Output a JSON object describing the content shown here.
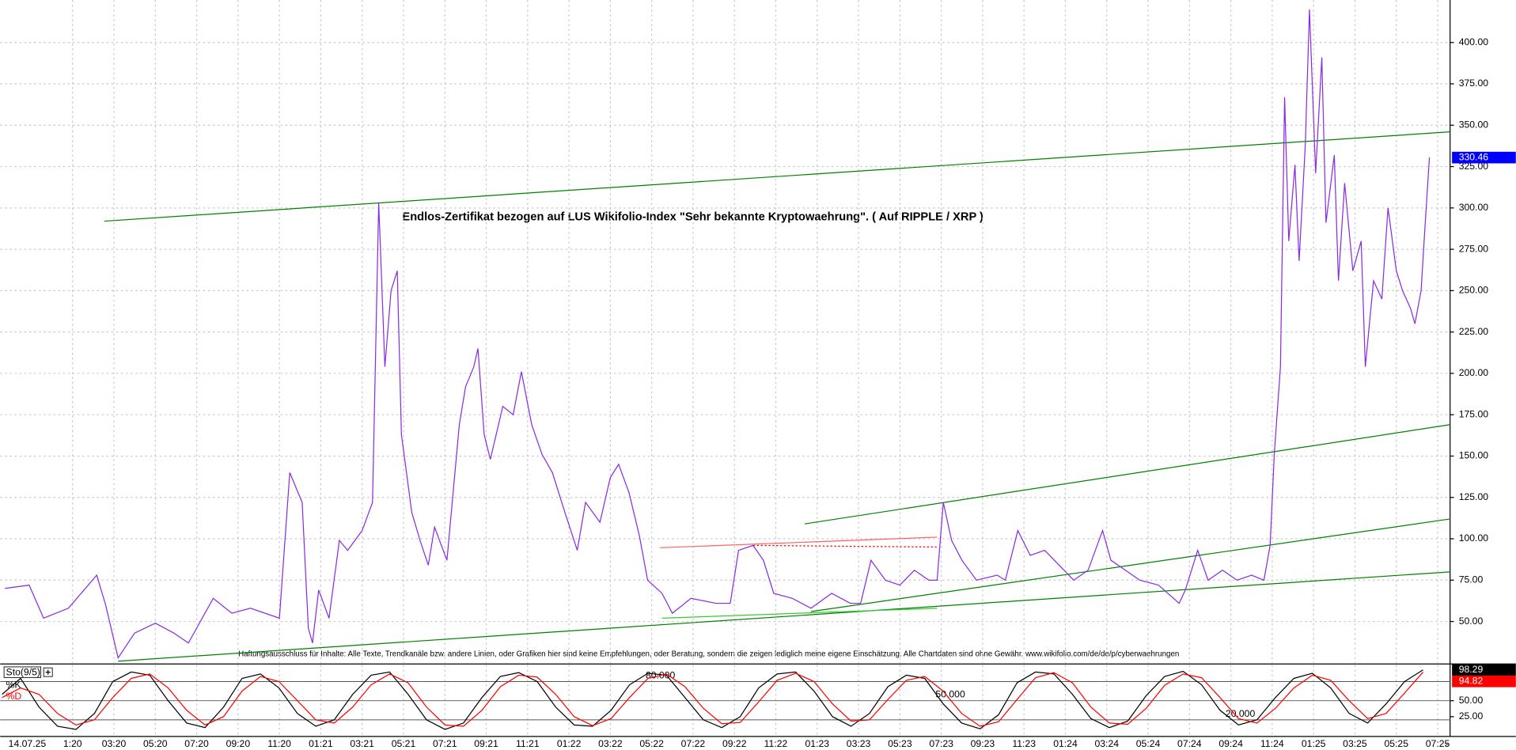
{
  "chart_data": [
    {
      "type": "line",
      "title": "Endlos-Zertifikat bezogen auf LUS Wikifolio-Index \"Sehr bekannte Kryptowaehrung\". ( Auf RIPPLE / XRP )",
      "annotation": "Haftungsausschluss für Inhalte: Alle Texte, Trendkanäle bzw. andere Linien, oder Grafiken hier sind keine Empfehlungen, oder Beratung, sondern die zeigen lediglich meine eigene Einschätzung. Alle Chartdaten sind ohne Gewähr. www.wikifolio.com/de/de/p/cyberwaehrungen",
      "cursor_date": "14.07.25",
      "x": [
        -3.27,
        -2.1,
        -1.4,
        -0.2,
        1.17,
        1.6,
        2.2,
        3.0,
        4.0,
        4.9,
        5.6,
        6.8,
        7.7,
        8.6,
        10.0,
        10.5,
        11.1,
        11.4,
        11.6,
        11.9,
        12.4,
        12.9,
        13.3,
        14.0,
        14.5,
        14.8,
        15.1,
        15.4,
        15.7,
        15.9,
        16.4,
        16.8,
        17.2,
        17.5,
        18.1,
        18.7,
        19.0,
        19.4,
        19.6,
        19.9,
        20.2,
        20.8,
        21.3,
        21.7,
        22.2,
        22.7,
        23.2,
        23.8,
        24.4,
        24.8,
        25.5,
        26.0,
        26.4,
        26.9,
        27.4,
        27.8,
        28.5,
        29.0,
        29.9,
        31.1,
        31.8,
        32.2,
        32.9,
        33.4,
        33.9,
        34.8,
        35.7,
        36.7,
        37.6,
        38.1,
        38.6,
        39.3,
        40.0,
        40.7,
        41.4,
        41.8,
        42.1,
        42.5,
        43.0,
        43.7,
        44.7,
        45.1,
        45.7,
        46.3,
        47.0,
        47.7,
        48.4,
        49.1,
        49.8,
        50.2,
        50.9,
        51.6,
        52.5,
        53.5,
        53.8,
        54.4,
        54.9,
        55.6,
        56.3,
        57.0,
        57.6,
        57.9,
        58.1,
        58.4,
        58.6,
        58.8,
        59.1,
        59.3,
        59.6,
        59.8,
        60.1,
        60.4,
        60.6,
        61.0,
        61.2,
        61.5,
        61.9,
        62.3,
        62.5,
        62.9,
        63.3,
        63.6,
        64.0,
        64.3,
        64.7,
        64.9,
        65.2,
        65.4,
        65.6
      ],
      "series": [
        {
          "color": "#8a2be2",
          "values": [
            70,
            72,
            52,
            58,
            78,
            60,
            28,
            43,
            49,
            43,
            37,
            64,
            55,
            58,
            52,
            140,
            122,
            46,
            37,
            69,
            52,
            99,
            93,
            105,
            122,
            303,
            204,
            250,
            262,
            163,
            116,
            99,
            84,
            107,
            87,
            169,
            192,
            204,
            215,
            163,
            148,
            180,
            175,
            201,
            169,
            151,
            140,
            116,
            93,
            122,
            110,
            137,
            145,
            128,
            102,
            75,
            67,
            55,
            64,
            61,
            61,
            93,
            96,
            87,
            67,
            64,
            58,
            67,
            61,
            61,
            87,
            75,
            72,
            81,
            75,
            75,
            122,
            99,
            87,
            75,
            78,
            75,
            105,
            90,
            93,
            84,
            75,
            81,
            105,
            87,
            81,
            75,
            72,
            61,
            69,
            93,
            75,
            81,
            75,
            78,
            75,
            96,
            151,
            204,
            367,
            280,
            326,
            268,
            338,
            420,
            321,
            391,
            291,
            332,
            256,
            315,
            262,
            280,
            204,
            256,
            245,
            300,
            262,
            250,
            239,
            230,
            250,
            291,
            330.46
          ]
        }
      ],
      "xlim": [
        -3.5,
        66.6
      ],
      "ylim": [
        24.9,
        425.7
      ],
      "xticks": [
        {
          "value": 0,
          "label": "1:20"
        },
        {
          "value": 2,
          "label": "03:20"
        },
        {
          "value": 4,
          "label": "05:20"
        },
        {
          "value": 6,
          "label": "07:20"
        },
        {
          "value": 8,
          "label": "09:20"
        },
        {
          "value": 10,
          "label": "11:20"
        },
        {
          "value": 12,
          "label": "01:21"
        },
        {
          "value": 14,
          "label": "03:21"
        },
        {
          "value": 16,
          "label": "05:21"
        },
        {
          "value": 18,
          "label": "07:21"
        },
        {
          "value": 20,
          "label": "09:21"
        },
        {
          "value": 22,
          "label": "11:21"
        },
        {
          "value": 24,
          "label": "01:22"
        },
        {
          "value": 26,
          "label": "03:22"
        },
        {
          "value": 28,
          "label": "05:22"
        },
        {
          "value": 30,
          "label": "07:22"
        },
        {
          "value": 32,
          "label": "09:22"
        },
        {
          "value": 34,
          "label": "11:22"
        },
        {
          "value": 36,
          "label": "01:23"
        },
        {
          "value": 38,
          "label": "03:23"
        },
        {
          "value": 40,
          "label": "05:23"
        },
        {
          "value": 42,
          "label": "07:23"
        },
        {
          "value": 44,
          "label": "09:23"
        },
        {
          "value": 46,
          "label": "11:23"
        },
        {
          "value": 48,
          "label": "01:24"
        },
        {
          "value": 50,
          "label": "03:24"
        },
        {
          "value": 52,
          "label": "05:24"
        },
        {
          "value": 54,
          "label": "07:24"
        },
        {
          "value": 56,
          "label": "09:24"
        },
        {
          "value": 58,
          "label": "11:24"
        },
        {
          "value": 60,
          "label": "01:25"
        },
        {
          "value": 62,
          "label": "03:25"
        },
        {
          "value": 64,
          "label": "05:25"
        },
        {
          "value": 66,
          "label": "07:25"
        }
      ],
      "yticks": [
        {
          "value": 50,
          "label": "50.00"
        },
        {
          "value": 75,
          "label": "75.00"
        },
        {
          "value": 100,
          "label": "100.00"
        },
        {
          "value": 125,
          "label": "125.00"
        },
        {
          "value": 150,
          "label": "150.00"
        },
        {
          "value": 175,
          "label": "175.00"
        },
        {
          "value": 200,
          "label": "200.00"
        },
        {
          "value": 225,
          "label": "225.00"
        },
        {
          "value": 250,
          "label": "250.00"
        },
        {
          "value": 275,
          "label": "275.00"
        },
        {
          "value": 300,
          "label": "300.00"
        },
        {
          "value": 325,
          "label": "325.00"
        },
        {
          "value": 350,
          "label": "350.00"
        },
        {
          "value": 375,
          "label": "375.00"
        },
        {
          "value": 400,
          "label": "400.00"
        }
      ],
      "grid": true,
      "current_color": "#0000ff",
      "trendlines": [
        {
          "color": "#008000",
          "x": [
            1.54,
            66.6
          ],
          "y": [
            292,
            346
          ]
        },
        {
          "color": "#008000",
          "x": [
            35.4,
            66.6
          ],
          "y": [
            109,
            169
          ]
        },
        {
          "color": "#008000",
          "x": [
            2.2,
            66.6
          ],
          "y": [
            26,
            80
          ]
        },
        {
          "color": "#008000",
          "x": [
            35.7,
            66.6
          ],
          "y": [
            56,
            112
          ]
        },
        {
          "color": "#33cc33",
          "x": [
            28.5,
            41.8
          ],
          "y": [
            52,
            58
          ]
        },
        {
          "color": "#ff6060",
          "x": [
            28.4,
            41.8
          ],
          "y": [
            94.6,
            101
          ]
        },
        {
          "color": "#ff0000",
          "x": [
            32.9,
            41.8
          ],
          "y": [
            96,
            95
          ],
          "dashed": true
        }
      ]
    },
    {
      "type": "line",
      "title": "Sto(9/5)",
      "series": [
        {
          "name": "%K",
          "color": "#000000",
          "values": [
            60,
            85,
            40,
            10,
            5,
            30,
            80,
            95,
            90,
            50,
            15,
            8,
            40,
            85,
            92,
            70,
            30,
            10,
            20,
            60,
            90,
            95,
            60,
            20,
            5,
            15,
            55,
            88,
            94,
            80,
            40,
            12,
            10,
            35,
            75,
            93,
            90,
            55,
            20,
            8,
            25,
            70,
            92,
            95,
            65,
            25,
            10,
            30,
            72,
            90,
            85,
            45,
            15,
            6,
            28,
            78,
            95,
            92,
            60,
            22,
            8,
            18,
            58,
            88,
            96,
            75,
            35,
            12,
            20,
            55,
            85,
            93,
            70,
            30,
            15,
            45,
            80,
            98.29
          ]
        },
        {
          "name": "%D",
          "color": "#ff0000",
          "values": [
            55,
            70,
            60,
            30,
            12,
            20,
            55,
            85,
            92,
            70,
            35,
            12,
            25,
            65,
            88,
            80,
            50,
            20,
            15,
            40,
            75,
            92,
            78,
            40,
            12,
            10,
            35,
            72,
            90,
            87,
            60,
            25,
            11,
            22,
            55,
            85,
            92,
            72,
            38,
            14,
            16,
            48,
            82,
            93,
            80,
            45,
            18,
            20,
            52,
            82,
            88,
            65,
            30,
            10,
            17,
            52,
            86,
            94,
            78,
            40,
            15,
            13,
            38,
            74,
            92,
            86,
            55,
            22,
            15,
            38,
            70,
            90,
            82,
            50,
            22,
            30,
            62,
            94.82
          ]
        }
      ],
      "ylim": [
        -6,
        106
      ],
      "yticks": [
        {
          "value": 50,
          "label": "50.00"
        },
        {
          "value": 25,
          "label": "25.00"
        }
      ],
      "levels": [
        {
          "value": 80,
          "label": "80.000"
        },
        {
          "value": 50,
          "label": "50.000"
        },
        {
          "value": 20,
          "label": "20.000"
        }
      ]
    }
  ]
}
